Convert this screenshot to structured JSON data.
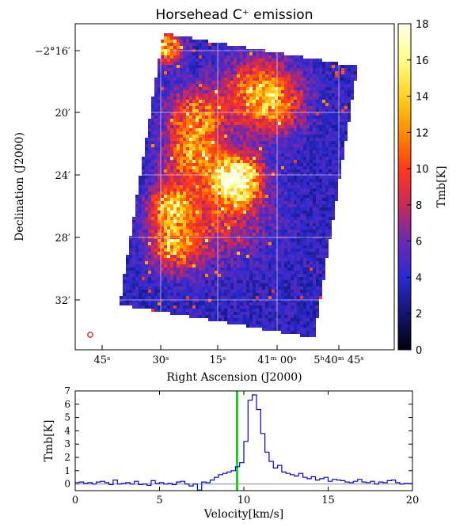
{
  "chart_data": [
    {
      "type": "heatmap",
      "title": "Horsehead C⁺ emission",
      "xlabel": "Right Ascension (J2000)",
      "ylabel": "Declination (J2000)",
      "x_ticks": [
        "45ˢ",
        "30ˢ",
        "15ˢ",
        "41ᵐ 00ˢ",
        "5ʰ40ᵐ 45ˢ"
      ],
      "y_ticks": [
        "−2°16′",
        "20′",
        "24′",
        "28′",
        "32′"
      ],
      "grid": true,
      "colorbar": {
        "label": "Tmb[K]",
        "range": [
          0,
          18
        ],
        "ticks": [
          "0",
          "2",
          "4",
          "6",
          "8",
          "10",
          "12",
          "14",
          "16",
          "18"
        ],
        "colormap": [
          "#000010",
          "#14146e",
          "#2a2ad2",
          "#6a2ab2",
          "#c8285a",
          "#ff3a18",
          "#ff8c00",
          "#ffd21e",
          "#ffff8c",
          "#ffffe6"
        ]
      },
      "beam_marker": "red circle"
    },
    {
      "type": "line",
      "xlabel": "Velocity[km/s]",
      "ylabel": "Tmb[K]",
      "xlim": [
        0,
        20
      ],
      "ylim": [
        -0.5,
        7
      ],
      "x_ticks": [
        "0",
        "5",
        "10",
        "15",
        "20"
      ],
      "y_ticks": [
        "0",
        "1",
        "2",
        "3",
        "4",
        "5",
        "6",
        "7"
      ],
      "drawstyle": "steps",
      "line_color": "#0000ee",
      "vline": {
        "x": 9.6,
        "color": "#22cc22"
      },
      "baseline": 0,
      "x": [
        0,
        0.25,
        0.5,
        0.75,
        1,
        1.25,
        1.5,
        1.75,
        2,
        2.25,
        2.5,
        2.75,
        3,
        3.25,
        3.5,
        3.75,
        4,
        4.25,
        4.5,
        4.75,
        5,
        5.25,
        5.5,
        5.75,
        6,
        6.25,
        6.5,
        6.75,
        7,
        7.25,
        7.5,
        7.75,
        8,
        8.25,
        8.5,
        8.75,
        9,
        9.25,
        9.5,
        9.75,
        10,
        10.25,
        10.5,
        10.75,
        11,
        11.25,
        11.5,
        11.75,
        12,
        12.25,
        12.5,
        12.75,
        13,
        13.25,
        13.5,
        13.75,
        14,
        14.25,
        14.5,
        14.75,
        15,
        15.25,
        15.5,
        15.75,
        16,
        16.25,
        16.5,
        16.75,
        17,
        17.25,
        17.5,
        17.75,
        18,
        18.25,
        18.5,
        18.75,
        19,
        19.25,
        19.5,
        19.75
      ],
      "y": [
        0.1,
        0.15,
        0.05,
        0.1,
        0.0,
        0.15,
        0.2,
        0.1,
        -0.05,
        0.3,
        0.0,
        0.05,
        0.1,
        0.0,
        0.2,
        -0.05,
        0.0,
        -0.1,
        0.25,
        0.05,
        0.1,
        0.0,
        0.05,
        -0.05,
        0.15,
        0.2,
        0.0,
        -0.15,
        0.0,
        -0.45,
        0.15,
        0.1,
        0.3,
        0.5,
        0.7,
        0.8,
        0.9,
        1.0,
        1.3,
        1.6,
        3.2,
        6.3,
        6.7,
        5.6,
        3.8,
        2.4,
        1.7,
        1.2,
        1.4,
        0.9,
        0.8,
        0.7,
        0.6,
        0.8,
        0.5,
        0.4,
        0.55,
        0.3,
        0.4,
        0.5,
        0.2,
        0.35,
        0.3,
        0.25,
        0.15,
        0.1,
        0.2,
        0.35,
        0.15,
        0.1,
        0.2,
        0.0,
        0.15,
        0.1,
        0.25,
        0.3,
        0.1,
        0.0,
        0.05,
        0.05
      ]
    }
  ]
}
